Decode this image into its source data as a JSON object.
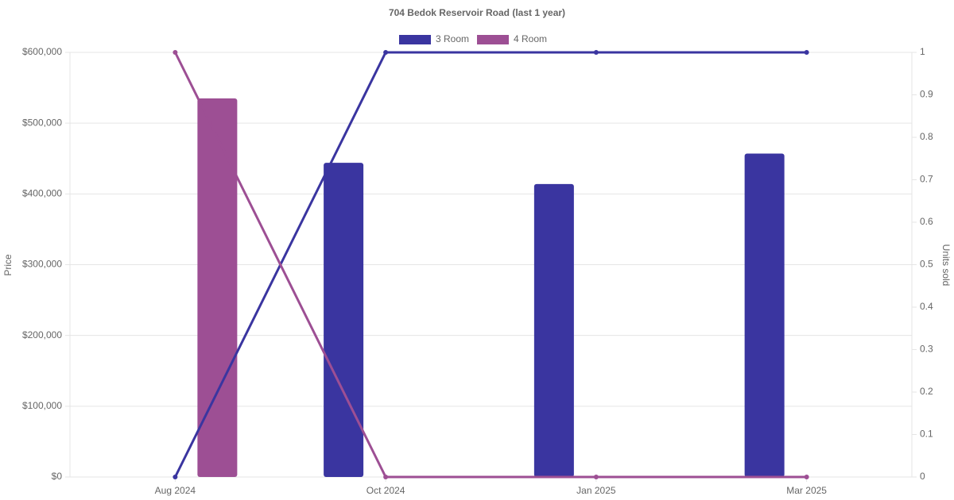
{
  "chart_data": {
    "type": "bar-line",
    "title": "704 Bedok Reservoir Road (last 1 year)",
    "y_label": "Price",
    "y2_label": "Units sold",
    "categories": [
      "Aug 2024",
      "Oct 2024",
      "Jan 2025",
      "Mar 2025"
    ],
    "series": [
      {
        "name": "3 Room",
        "color": "#3a35a0",
        "values": [
          null,
          444000,
          414000,
          457000
        ],
        "units_sold": [
          0,
          1,
          1,
          1
        ]
      },
      {
        "name": "4 Room",
        "color": "#9d4f94",
        "values": [
          535000,
          null,
          null,
          null
        ],
        "units_sold": [
          1,
          0,
          0,
          0
        ]
      }
    ],
    "ylim": [
      0,
      600000
    ],
    "yticks": [
      {
        "value": 0,
        "label": "$0"
      },
      {
        "value": 100000,
        "label": "$100,000"
      },
      {
        "value": 200000,
        "label": "$200,000"
      },
      {
        "value": 300000,
        "label": "$300,000"
      },
      {
        "value": 400000,
        "label": "$400,000"
      },
      {
        "value": 500000,
        "label": "$500,000"
      },
      {
        "value": 600000,
        "label": "$600,000"
      }
    ],
    "y2lim": [
      0,
      1
    ],
    "y2ticks": [
      0,
      0.1,
      0.2,
      0.3,
      0.4,
      0.5,
      0.6,
      0.7,
      0.8,
      0.9,
      1
    ],
    "grid": true,
    "legend": "top"
  }
}
